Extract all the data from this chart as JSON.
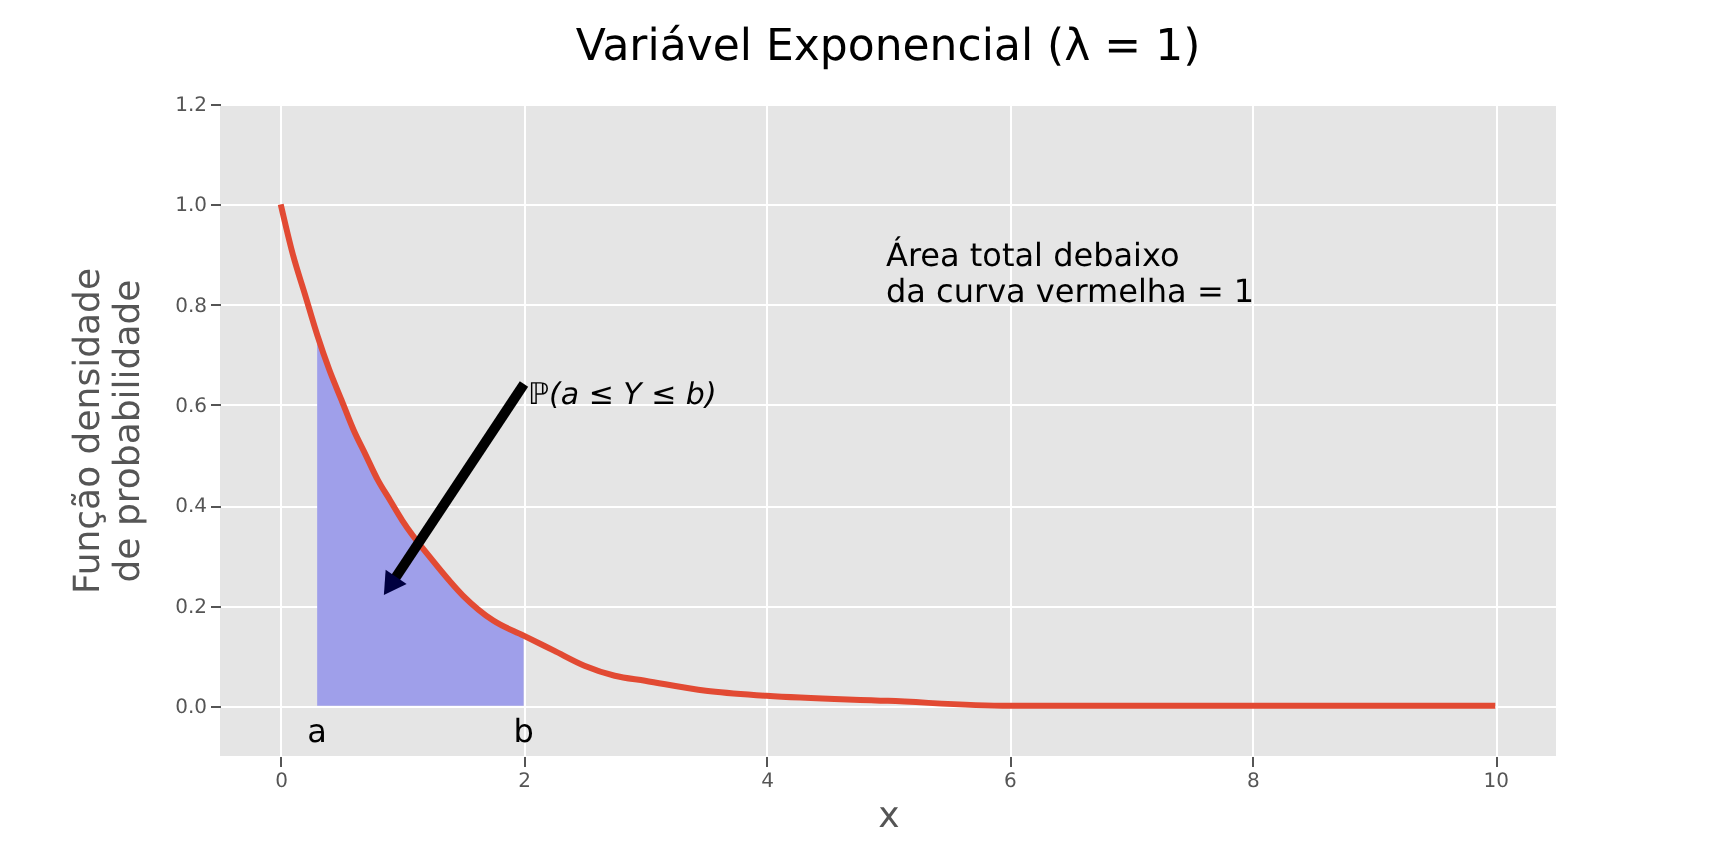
{
  "chart_data": {
    "type": "line",
    "title": "Variável Exponencial (λ = 1)",
    "xlabel": "x",
    "ylabel": "Função densidade\nde probabilidade",
    "xlim": [
      -0.5,
      10.5
    ],
    "ylim": [
      -0.1,
      1.2
    ],
    "xticks": [
      0,
      2,
      4,
      6,
      8,
      10
    ],
    "yticks": [
      {
        "value": 0,
        "label": "0.0"
      },
      {
        "value": 0.2,
        "label": "0.2"
      },
      {
        "value": 0.4,
        "label": "0.4"
      },
      {
        "value": 0.6,
        "label": "0.6"
      },
      {
        "value": 0.8,
        "label": "0.8"
      },
      {
        "value": 1,
        "label": "1.0"
      },
      {
        "value": 1.2,
        "label": "1.2"
      }
    ],
    "grid": true,
    "line_style": "solid",
    "series": [
      {
        "type": "area",
        "color": "#9f9fea",
        "x": [
          0.3,
          0.4,
          0.5,
          0.6,
          0.7,
          0.8,
          0.9,
          1,
          1.25,
          1.5,
          1.75,
          2
        ],
        "values": [
          0.74,
          0.67,
          0.61,
          0.55,
          0.5,
          0.45,
          0.41,
          0.37,
          0.29,
          0.22,
          0.17,
          0.14
        ]
      },
      {
        "color": "#e24a33",
        "x": [
          0,
          0.1,
          0.2,
          0.3,
          0.4,
          0.5,
          0.6,
          0.7,
          0.8,
          0.9,
          1,
          1.25,
          1.5,
          1.75,
          2,
          2.25,
          2.5,
          2.75,
          3,
          3.5,
          4,
          5,
          6,
          8,
          10
        ],
        "values": [
          1.0,
          0.9,
          0.82,
          0.74,
          0.67,
          0.61,
          0.55,
          0.5,
          0.45,
          0.41,
          0.37,
          0.29,
          0.22,
          0.17,
          0.14,
          0.11,
          0.08,
          0.06,
          0.05,
          0.03,
          0.02,
          0.01,
          0.0,
          0.0,
          0.0
        ]
      }
    ],
    "annotations": [
      "a",
      "b",
      "ℙ(a ≤ Y ≤ b)",
      "Área total debaixo\nda curva vermelha = 1"
    ]
  }
}
